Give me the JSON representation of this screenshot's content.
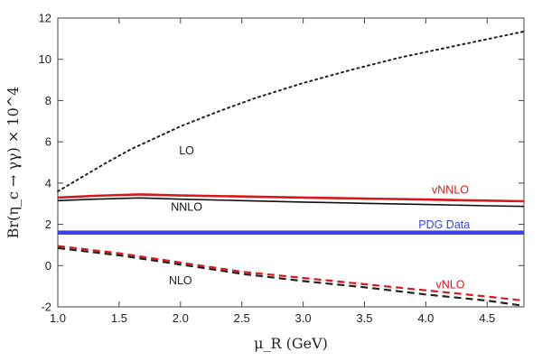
{
  "chart_data": {
    "type": "line",
    "title": "",
    "xlabel": "μ_R (GeV)",
    "ylabel": "Br(η_c → γγ) × 10^4",
    "xlim": [
      1.0,
      4.8
    ],
    "ylim": [
      -2,
      12
    ],
    "xticks": [
      1.0,
      1.5,
      2.0,
      2.5,
      3.0,
      3.5,
      4.0,
      4.5
    ],
    "xtick_labels": [
      "1.0",
      "1.5",
      "2.0",
      "2.5",
      "3.0",
      "3.5",
      "4.0",
      "4.5"
    ],
    "yticks": [
      -2,
      0,
      2,
      4,
      6,
      8,
      10,
      12
    ],
    "ytick_labels": [
      "-2",
      "0",
      "2",
      "4",
      "6",
      "8",
      "10",
      "12"
    ],
    "grid": false,
    "series": [
      {
        "name": "LO",
        "color": "#222222",
        "style": "dotted",
        "label_at": [
          2.05,
          5.4
        ],
        "x": [
          1.0,
          1.2,
          1.4,
          1.6,
          1.8,
          2.0,
          2.3,
          2.6,
          3.0,
          3.4,
          3.8,
          4.2,
          4.6,
          4.8
        ],
        "y": [
          3.6,
          4.3,
          5.0,
          5.65,
          6.2,
          6.75,
          7.45,
          8.1,
          8.85,
          9.5,
          10.1,
          10.6,
          11.1,
          11.35
        ]
      },
      {
        "name": "vNNLO",
        "color": "#d7191c",
        "style": "solid",
        "label_at": [
          4.2,
          3.5
        ],
        "x": [
          1.0,
          1.3,
          1.67,
          2.0,
          2.5,
          3.0,
          3.5,
          4.0,
          4.5,
          4.8
        ],
        "y": [
          3.3,
          3.38,
          3.45,
          3.4,
          3.35,
          3.3,
          3.25,
          3.2,
          3.15,
          3.12
        ]
      },
      {
        "name": "NNLO",
        "color": "#111111",
        "style": "solid",
        "label_at": [
          2.05,
          2.65
        ],
        "x": [
          1.0,
          1.3,
          1.67,
          2.0,
          2.5,
          3.0,
          3.5,
          4.0,
          4.5,
          4.8
        ],
        "y": [
          3.15,
          3.22,
          3.28,
          3.22,
          3.15,
          3.08,
          3.02,
          2.96,
          2.9,
          2.87
        ]
      },
      {
        "name": "PDG Data",
        "color": "#3a3ff0",
        "style": "band",
        "label_at": [
          4.15,
          1.8
        ],
        "x": [
          1.0,
          4.8
        ],
        "y": [
          1.6,
          1.6
        ],
        "band": [
          1.5,
          1.7
        ]
      },
      {
        "name": "vNLO",
        "color": "#d7191c",
        "style": "dashed",
        "label_at": [
          4.2,
          -1.1
        ],
        "x": [
          1.0,
          1.5,
          2.0,
          2.5,
          3.0,
          3.5,
          4.0,
          4.5,
          4.8
        ],
        "y": [
          0.95,
          0.6,
          0.15,
          -0.3,
          -0.6,
          -0.9,
          -1.2,
          -1.5,
          -1.7
        ]
      },
      {
        "name": "NLO",
        "color": "#222222",
        "style": "dashed",
        "label_at": [
          2.0,
          -0.9
        ],
        "x": [
          1.0,
          1.5,
          2.0,
          2.5,
          3.0,
          3.5,
          4.0,
          4.5,
          4.8
        ],
        "y": [
          0.85,
          0.5,
          0.05,
          -0.4,
          -0.75,
          -1.05,
          -1.4,
          -1.7,
          -1.95
        ]
      }
    ]
  }
}
